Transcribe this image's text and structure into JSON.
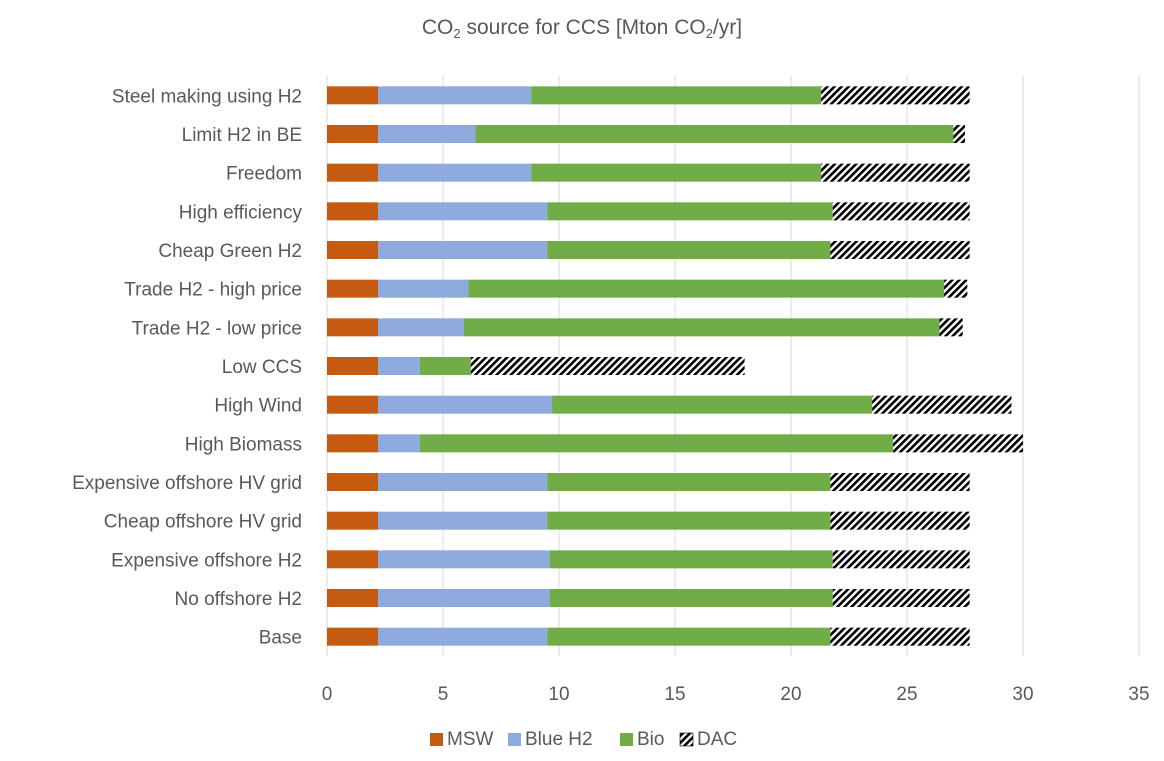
{
  "chart_data": {
    "type": "bar",
    "orientation": "horizontal",
    "stacked": true,
    "title": {
      "prefix": "CO",
      "sub1": "2",
      "middle": " source for CCS [Mton CO",
      "sub2": "2",
      "suffix": "/yr]"
    },
    "xlim": [
      0,
      35
    ],
    "x_ticks": [
      "0",
      "5",
      "10",
      "15",
      "20",
      "25",
      "30",
      "35"
    ],
    "grid": true,
    "legend_position": "bottom",
    "categories": [
      "Base",
      "No offshore H2",
      "Expensive offshore H2",
      "Cheap offshore HV grid",
      "Expensive offshore HV grid",
      "High Biomass",
      "High Wind",
      "Low CCS",
      "Trade H2 - low price",
      "Trade H2 - high price",
      "Cheap Green H2",
      "High efficiency",
      "Freedom",
      "Limit H2 in BE",
      "Steel making using H2"
    ],
    "series": [
      {
        "name": "MSW",
        "color": "#c55a11",
        "pattern": "solid",
        "values": [
          2.2,
          2.2,
          2.2,
          2.2,
          2.2,
          2.2,
          2.2,
          2.2,
          2.2,
          2.2,
          2.2,
          2.2,
          2.2,
          2.2,
          2.2
        ]
      },
      {
        "name": "Blue H2",
        "color": "#8faadc",
        "pattern": "solid",
        "values": [
          7.3,
          7.4,
          7.4,
          7.3,
          7.3,
          1.8,
          7.5,
          1.8,
          3.7,
          3.9,
          7.3,
          7.3,
          6.6,
          4.2,
          6.6
        ]
      },
      {
        "name": "Bio",
        "color": "#70ad47",
        "pattern": "solid",
        "values": [
          12.2,
          12.2,
          12.2,
          12.2,
          12.2,
          20.4,
          13.8,
          2.2,
          20.5,
          20.5,
          12.2,
          12.3,
          12.5,
          20.6,
          12.5
        ]
      },
      {
        "name": "DAC",
        "color": "#000000",
        "pattern": "hatch",
        "values": [
          6.0,
          5.9,
          5.9,
          6.0,
          6.0,
          5.6,
          6.0,
          11.8,
          1.0,
          1.0,
          6.0,
          5.9,
          6.4,
          0.5,
          6.4
        ]
      }
    ]
  }
}
